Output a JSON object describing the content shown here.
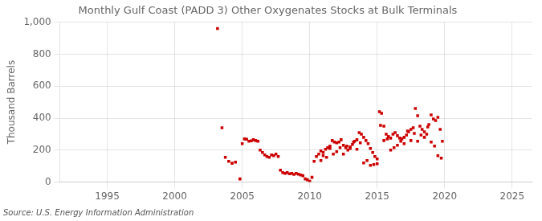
{
  "chart_data": {
    "type": "scatter",
    "title": "Monthly Gulf Coast (PADD 3) Other Oxygenates Stocks at Bulk Terminals",
    "ylabel": "Thousand Barrels",
    "annotations": [
      "Source: U.S. Energy Information Administration"
    ],
    "color": "#CC0000",
    "marker": "square",
    "grid": true,
    "xlim": [
      1991.5,
      2026.5
    ],
    "xticks": [
      1995,
      2000,
      2005,
      2010,
      2015,
      2020,
      2025
    ],
    "ylim": [
      0,
      1000
    ],
    "yticks": [
      0,
      200,
      400,
      600,
      800,
      {
        "value": 1000,
        "label": "1,000"
      }
    ],
    "x": [
      2003.17,
      2003.5,
      2003.75,
      2004.0,
      2004.25,
      2004.5,
      2004.83,
      2005.0,
      2005.17,
      2005.33,
      2005.5,
      2005.67,
      2005.83,
      2006.0,
      2006.17,
      2006.33,
      2006.5,
      2006.67,
      2006.83,
      2007.0,
      2007.17,
      2007.33,
      2007.5,
      2007.67,
      2007.83,
      2008.0,
      2008.17,
      2008.33,
      2008.5,
      2008.67,
      2008.83,
      2009.0,
      2009.17,
      2009.33,
      2009.5,
      2009.67,
      2009.83,
      2010.0,
      2010.17,
      2010.33,
      2010.5,
      2010.67,
      2010.83,
      2011.0,
      2011.17,
      2011.33,
      2011.5,
      2011.67,
      2011.83,
      2012.0,
      2012.17,
      2012.33,
      2012.5,
      2012.67,
      2012.83,
      2013.0,
      2013.17,
      2013.33,
      2013.5,
      2013.67,
      2013.83,
      2014.0,
      2014.17,
      2014.33,
      2014.5,
      2014.67,
      2014.83,
      2015.0,
      2015.17,
      2015.33,
      2015.5,
      2015.67,
      2015.83,
      2016.0,
      2016.17,
      2016.33,
      2016.5,
      2016.67,
      2016.83,
      2017.0,
      2017.17,
      2017.33,
      2017.5,
      2017.67,
      2017.83,
      2018.0,
      2018.17,
      2018.33,
      2018.5,
      2018.67,
      2018.83,
      2019.0,
      2019.17,
      2019.33,
      2019.5,
      2019.67,
      2019.83,
      2011.0,
      2011.5,
      2012.0,
      2012.5,
      2013.0,
      2013.5,
      2014.0,
      2014.5,
      2015.0,
      2015.5,
      2016.0,
      2016.5,
      2017.0,
      2017.5,
      2018.0,
      2018.5,
      2019.0,
      2019.5,
      2010.83,
      2011.25,
      2011.75,
      2012.25,
      2012.75,
      2013.25,
      2013.75,
      2014.25,
      2014.75,
      2015.25,
      2015.75,
      2016.25,
      2016.75,
      2017.25,
      2017.75,
      2018.25,
      2018.75,
      2019.25,
      2019.75
    ],
    "values": [
      960,
      340,
      155,
      130,
      118,
      125,
      20,
      240,
      270,
      268,
      255,
      258,
      265,
      260,
      255,
      200,
      185,
      170,
      160,
      155,
      170,
      165,
      175,
      160,
      75,
      60,
      55,
      60,
      52,
      55,
      48,
      55,
      50,
      45,
      40,
      20,
      15,
      5,
      30,
      130,
      160,
      175,
      195,
      185,
      205,
      215,
      225,
      260,
      250,
      245,
      250,
      265,
      230,
      215,
      200,
      210,
      235,
      255,
      265,
      310,
      300,
      280,
      260,
      240,
      210,
      185,
      160,
      145,
      440,
      430,
      350,
      300,
      285,
      275,
      300,
      310,
      290,
      275,
      270,
      280,
      295,
      315,
      330,
      340,
      460,
      415,
      350,
      330,
      315,
      300,
      360,
      420,
      395,
      385,
      405,
      330,
      255,
      165,
      210,
      190,
      175,
      220,
      205,
      120,
      105,
      115,
      260,
      200,
      230,
      240,
      260,
      255,
      280,
      250,
      165,
      135,
      155,
      175,
      215,
      225,
      250,
      245,
      135,
      110,
      355,
      270,
      215,
      255,
      320,
      305,
      295,
      345,
      225,
      150
    ]
  }
}
